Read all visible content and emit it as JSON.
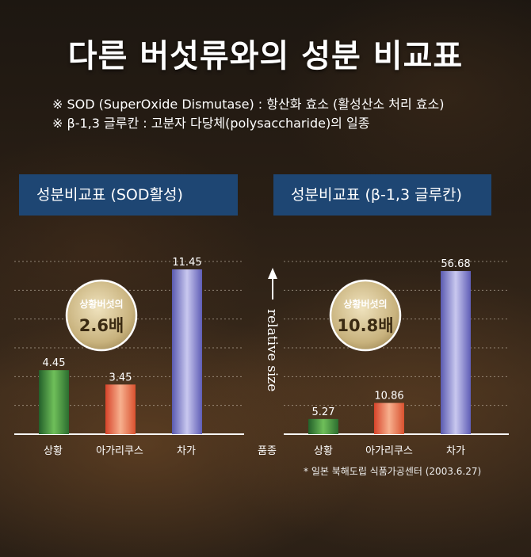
{
  "title": "다른 버섯류와의 성분 비교표",
  "notes": [
    "※ SOD (SuperOxide Dismutase) : 항산화 효소 (활성산소 처리 효소)",
    "※ β-1,3 글루칸 : 고분자 다당체(polysaccharide)의 일종"
  ],
  "footnote": "* 일본 북해도립 식품가공센터 (2003.6.27)",
  "colors": {
    "green": "#3f8a3a",
    "orange": "#e0623a",
    "purple": "#7b78c4",
    "panel": "#1e4673",
    "badge": "#c8b27d"
  },
  "chart_data": [
    {
      "type": "bar",
      "title": "성분비교표 (SOD활성)",
      "categories": [
        "상황",
        "아가리쿠스",
        "차가"
      ],
      "values": [
        4.45,
        3.45,
        11.45
      ],
      "value_labels": [
        "4.45",
        "3.45",
        "11.45"
      ],
      "ylim": [
        0,
        12
      ],
      "grid": true,
      "badge": {
        "line1": "상황버섯의",
        "line2": "2.6배"
      }
    },
    {
      "type": "bar",
      "title": "성분비교표 (β-1,3 글루칸)",
      "categories": [
        "상황",
        "아가리쿠스",
        "차가"
      ],
      "values": [
        5.27,
        10.86,
        56.68
      ],
      "value_labels": [
        "5.27",
        "10.86",
        "56.68"
      ],
      "ylim": [
        0,
        60
      ],
      "grid": true,
      "ylabel": "relative size",
      "xlabel": "품종",
      "badge": {
        "line1": "상황버섯의",
        "line2": "10.8배"
      }
    }
  ]
}
